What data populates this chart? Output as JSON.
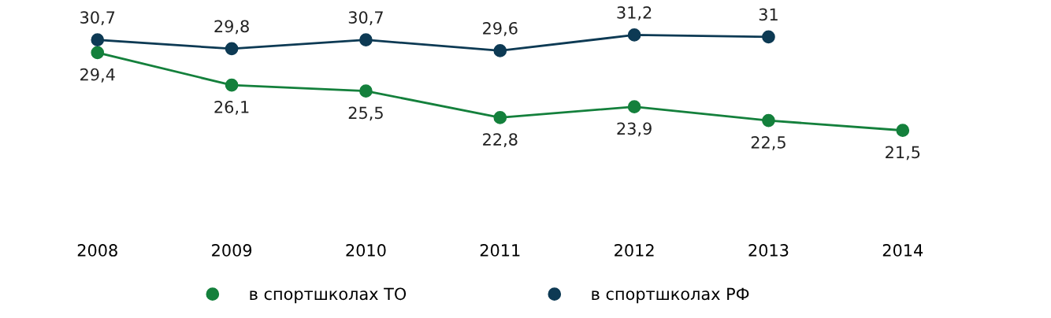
{
  "chart_data": {
    "type": "line",
    "categories": [
      "2008",
      "2009",
      "2010",
      "2011",
      "2012",
      "2013",
      "2014"
    ],
    "series": [
      {
        "name": "в спортшколах ТО",
        "color": "#14803c",
        "values": [
          29.4,
          26.1,
          25.5,
          22.8,
          23.9,
          22.5,
          21.5
        ],
        "value_labels": [
          "29,4",
          "26,1",
          "25,5",
          "22,8",
          "23,9",
          "22,5",
          "21,5"
        ]
      },
      {
        "name": "в спортшколах РФ",
        "color": "#0d3a54",
        "values": [
          30.7,
          29.8,
          30.7,
          29.6,
          31.2,
          31.0,
          null
        ],
        "value_labels": [
          "30,7",
          "29,8",
          "30,7",
          "29,6",
          "31,2",
          "31",
          null
        ]
      }
    ],
    "marker": "circle",
    "line_style": "solid",
    "legend": "bottom",
    "grid": false
  }
}
